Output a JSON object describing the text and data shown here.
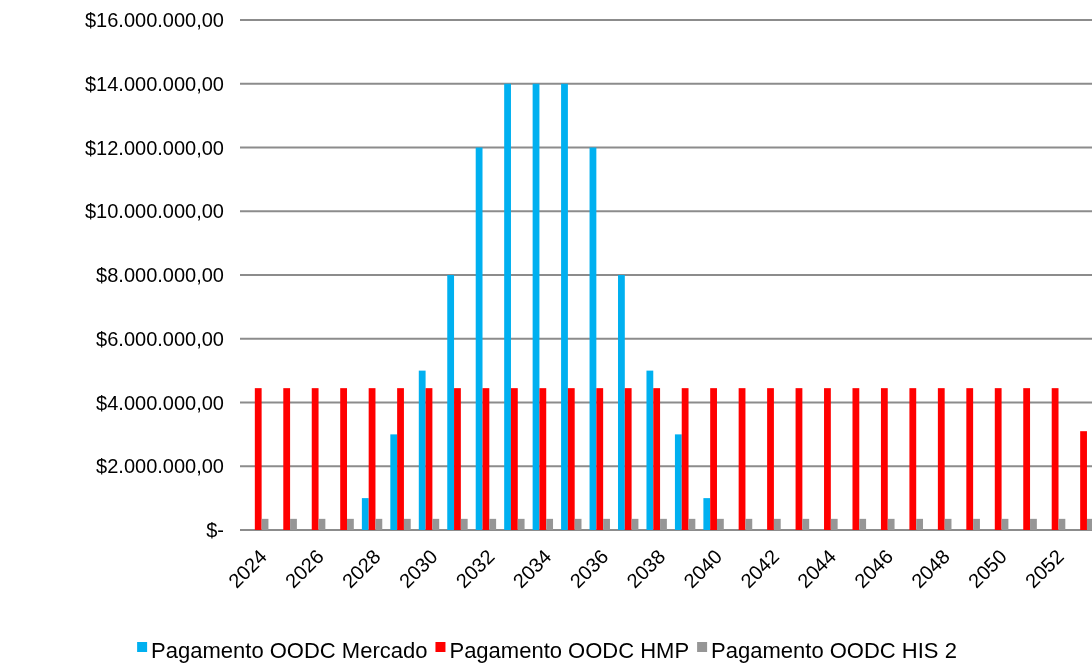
{
  "chart_data": {
    "type": "bar",
    "categories": [
      "2024",
      null,
      "2026",
      null,
      "2028",
      null,
      "2030",
      null,
      "2032",
      null,
      "2034",
      null,
      "2036",
      null,
      "2038",
      null,
      "2040",
      null,
      "2042",
      null,
      "2044",
      null,
      "2046",
      null,
      "2048",
      null,
      "2050",
      null,
      "2052",
      null
    ],
    "series": [
      {
        "name": "Pagamento OODC Mercado",
        "color": "#00b0f0",
        "values": [
          0,
          0,
          0,
          0,
          1000000,
          3000000,
          5000000,
          8000000,
          12000000,
          14000000,
          14000000,
          14000000,
          12000000,
          8000000,
          5000000,
          3000000,
          1000000,
          0,
          0,
          0,
          0,
          0,
          0,
          0,
          0,
          0,
          0,
          0,
          0,
          0
        ]
      },
      {
        "name": "Pagamento OODC HMP",
        "color": "#ff0000",
        "values": [
          4450000,
          4450000,
          4450000,
          4450000,
          4450000,
          4450000,
          4450000,
          4450000,
          4450000,
          4450000,
          4450000,
          4450000,
          4450000,
          4450000,
          4450000,
          4450000,
          4450000,
          4450000,
          4450000,
          4450000,
          4450000,
          4450000,
          4450000,
          4450000,
          4450000,
          4450000,
          4450000,
          4450000,
          4450000,
          3100000
        ]
      },
      {
        "name": "Pagamento OODC HIS 2",
        "color": "#969696",
        "values": [
          350000,
          350000,
          350000,
          350000,
          350000,
          350000,
          350000,
          350000,
          350000,
          350000,
          350000,
          350000,
          350000,
          350000,
          350000,
          350000,
          350000,
          350000,
          350000,
          350000,
          350000,
          350000,
          350000,
          350000,
          350000,
          350000,
          350000,
          350000,
          350000,
          350000
        ]
      }
    ],
    "ylim": [
      0,
      16000000
    ],
    "yticks": [
      {
        "value": 0,
        "label": "$-"
      },
      {
        "value": 2000000,
        "label": "$2.000.000,00"
      },
      {
        "value": 4000000,
        "label": "$4.000.000,00"
      },
      {
        "value": 6000000,
        "label": "$6.000.000,00"
      },
      {
        "value": 8000000,
        "label": "$8.000.000,00"
      },
      {
        "value": 10000000,
        "label": "$10.000.000,00"
      },
      {
        "value": 12000000,
        "label": "$12.000.000,00"
      },
      {
        "value": 14000000,
        "label": "$14.000.000,00"
      },
      {
        "value": 16000000,
        "label": "$16.000.000,00"
      }
    ],
    "grid": "y",
    "legend": "bottom"
  }
}
